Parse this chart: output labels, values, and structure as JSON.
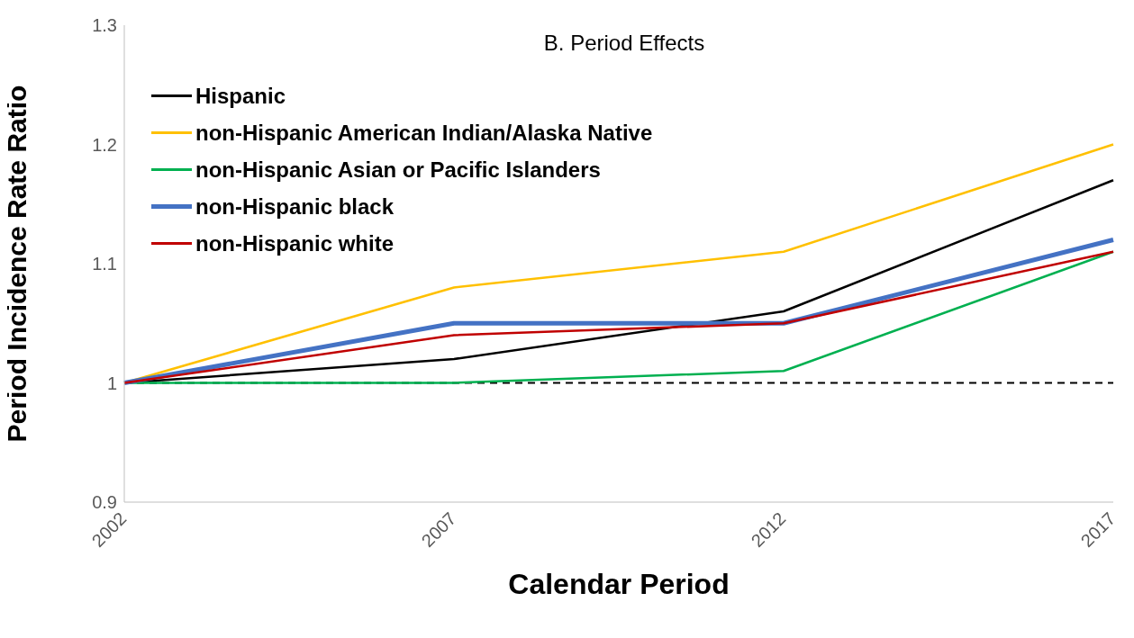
{
  "chart_data": {
    "type": "line",
    "title": "B. Period Effects",
    "xlabel": "Calendar Period",
    "ylabel": "Period Incidence Rate Ratio",
    "categories": [
      "2002",
      "2007",
      "2012",
      "2017"
    ],
    "series": [
      {
        "name": "Hispanic",
        "color": "#000000",
        "values": [
          1.0,
          1.02,
          1.06,
          1.17
        ]
      },
      {
        "name": "non-Hispanic American Indian/Alaska Native",
        "color": "#ffc000",
        "values": [
          1.0,
          1.08,
          1.11,
          1.2
        ]
      },
      {
        "name": "non-Hispanic Asian or Pacific Islanders",
        "color": "#00b050",
        "values": [
          1.0,
          1.0,
          1.01,
          1.11
        ]
      },
      {
        "name": "non-Hispanic black",
        "color": "#4472c4",
        "values": [
          1.0,
          1.05,
          1.05,
          1.12
        ]
      },
      {
        "name": "non-Hispanic white",
        "color": "#c00000",
        "values": [
          1.0,
          1.04,
          1.05,
          1.11
        ]
      }
    ],
    "ylim": [
      0.9,
      1.3
    ],
    "yticks": [
      0.9,
      1,
      1.1,
      1.2,
      1.3
    ],
    "legend": "top left",
    "marker": "none",
    "line_style": "solid",
    "ref_lines": [
      {
        "axis": "y",
        "value": 1,
        "color": "#000000",
        "line_style": "dashed"
      }
    ]
  }
}
